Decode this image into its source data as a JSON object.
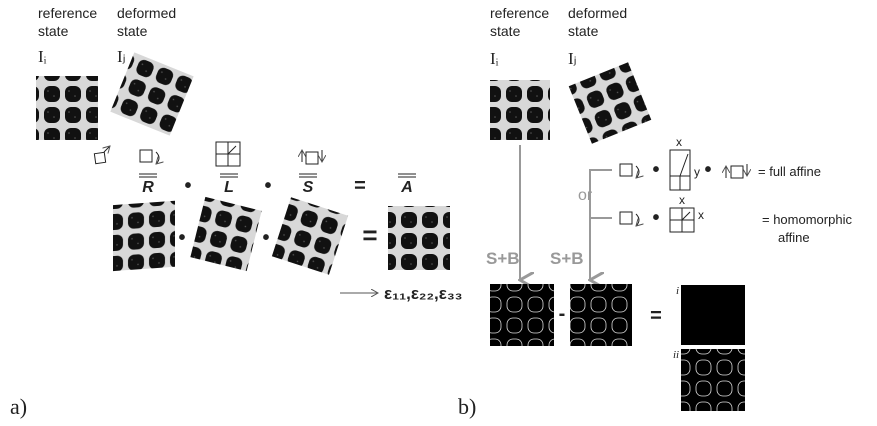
{
  "panel_a": {
    "label": "a)",
    "reference_state": [
      "reference",
      "state"
    ],
    "deformed_state": [
      "deformed",
      "state"
    ],
    "ref_image": "Iᵢ",
    "def_image": "Iⱼ",
    "matrices": [
      "R",
      "L",
      "S",
      "A"
    ],
    "operators": [
      "•",
      "•",
      "="
    ],
    "image_operators": [
      "•",
      "•",
      "="
    ],
    "strains": "ε₁₁,ε₂₂,ε₃₃"
  },
  "panel_b": {
    "label": "b)",
    "reference_state": [
      "reference",
      "state"
    ],
    "deformed_state": [
      "deformed",
      "state"
    ],
    "ref_image": "Iᵢ",
    "def_image": "Iⱼ",
    "transform_1": "S+B",
    "transform_2": "S+B",
    "branch": "or",
    "full_affine": {
      "axis_x": "x",
      "axis_y": "y",
      "operators": [
        "•",
        "•"
      ],
      "result": "= full affine"
    },
    "homomorphic_affine": {
      "axis_x": "x",
      "axis_x2": "x",
      "operator": "•",
      "result": [
        "= homomorphic",
        "affine"
      ]
    },
    "minus": "-",
    "equals": "=",
    "result_labels": [
      "i",
      "ii"
    ]
  }
}
